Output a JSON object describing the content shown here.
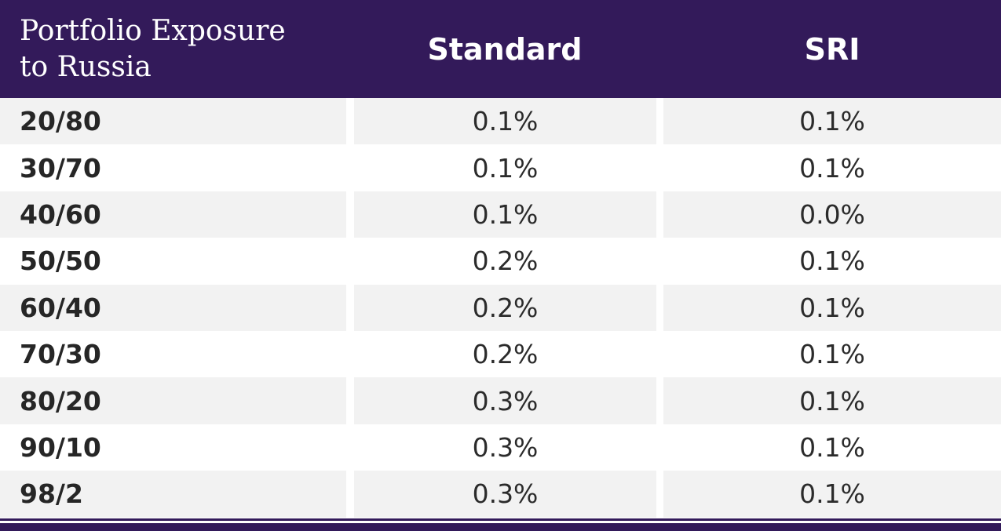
{
  "header": {
    "label_line1": "Portfolio Exposure",
    "label_line2": "to Russia",
    "col_standard": "Standard",
    "col_sri": "SRI"
  },
  "rows": [
    {
      "label": "20/80",
      "standard": "0.1%",
      "sri": "0.1%"
    },
    {
      "label": "30/70",
      "standard": "0.1%",
      "sri": "0.1%"
    },
    {
      "label": "40/60",
      "standard": "0.1%",
      "sri": "0.0%"
    },
    {
      "label": "50/50",
      "standard": "0.2%",
      "sri": "0.1%"
    },
    {
      "label": "60/40",
      "standard": "0.2%",
      "sri": "0.1%"
    },
    {
      "label": "70/30",
      "standard": "0.2%",
      "sri": "0.1%"
    },
    {
      "label": "80/20",
      "standard": "0.3%",
      "sri": "0.1%"
    },
    {
      "label": "90/10",
      "standard": "0.3%",
      "sri": "0.1%"
    },
    {
      "label": "98/2",
      "standard": "0.3%",
      "sri": "0.1%"
    }
  ],
  "colors": {
    "header_bg": "#331a5a",
    "row_shade": "#f2f2f2",
    "text": "#2b2b2b"
  }
}
